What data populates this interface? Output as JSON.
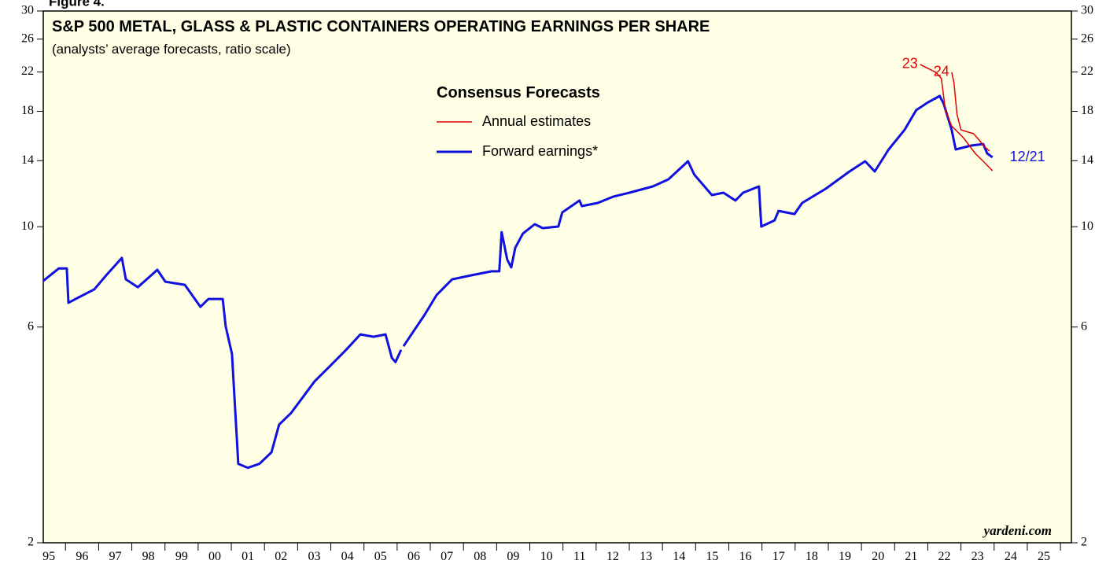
{
  "chart_data": {
    "type": "line",
    "figure_label": "Figure 4.",
    "title": "S&P 500 METAL, GLASS & PLASTIC CONTAINERS OPERATING EARNINGS PER SHARE",
    "subtitle": "(analysts’ average forecasts, ratio scale)",
    "watermark": "yardeni.com",
    "log_scale": true,
    "background": "#ffffe6",
    "ylim": [
      2,
      30
    ],
    "yticks": [
      2,
      6,
      10,
      14,
      18,
      22,
      26,
      30
    ],
    "xlim": [
      1995.33,
      2026.33
    ],
    "xticks": [
      {
        "value": 1995.5,
        "label": "95"
      },
      {
        "value": 1996.5,
        "label": "96"
      },
      {
        "value": 1997.5,
        "label": "97"
      },
      {
        "value": 1998.5,
        "label": "98"
      },
      {
        "value": 1999.5,
        "label": "99"
      },
      {
        "value": 2000.5,
        "label": "00"
      },
      {
        "value": 2001.5,
        "label": "01"
      },
      {
        "value": 2002.5,
        "label": "02"
      },
      {
        "value": 2003.5,
        "label": "03"
      },
      {
        "value": 2004.5,
        "label": "04"
      },
      {
        "value": 2005.5,
        "label": "05"
      },
      {
        "value": 2006.5,
        "label": "06"
      },
      {
        "value": 2007.5,
        "label": "07"
      },
      {
        "value": 2008.5,
        "label": "08"
      },
      {
        "value": 2009.5,
        "label": "09"
      },
      {
        "value": 2010.5,
        "label": "10"
      },
      {
        "value": 2011.5,
        "label": "11"
      },
      {
        "value": 2012.5,
        "label": "12"
      },
      {
        "value": 2013.5,
        "label": "13"
      },
      {
        "value": 2014.5,
        "label": "14"
      },
      {
        "value": 2015.5,
        "label": "15"
      },
      {
        "value": 2016.5,
        "label": "16"
      },
      {
        "value": 2017.5,
        "label": "17"
      },
      {
        "value": 2018.5,
        "label": "18"
      },
      {
        "value": 2019.5,
        "label": "19"
      },
      {
        "value": 2020.5,
        "label": "20"
      },
      {
        "value": 2021.5,
        "label": "21"
      },
      {
        "value": 2022.5,
        "label": "22"
      },
      {
        "value": 2023.5,
        "label": "23"
      },
      {
        "value": 2024.5,
        "label": "24"
      },
      {
        "value": 2025.5,
        "label": "25"
      }
    ],
    "legend": {
      "title": "Consensus Forecasts",
      "entries": [
        {
          "name": "Annual estimates",
          "color": "#e00000"
        },
        {
          "name": "Forward earnings*",
          "color": "#1010e0"
        }
      ]
    },
    "series": [
      {
        "color": "#1010e0",
        "end_label": "12/21",
        "x": [
          1995.33,
          1995.8,
          1996.04,
          1996.09,
          1996.4,
          1996.87,
          1997.23,
          1997.7,
          1997.82,
          1998.18,
          1998.77,
          1999.01,
          1999.6,
          2000.07,
          2000.31,
          2000.74,
          2000.83,
          2001.02,
          2001.21,
          2001.5,
          2001.85,
          2002.21,
          2002.44,
          2002.8,
          2003.16,
          2003.51,
          2003.99,
          2004.46,
          2004.89,
          2005.29,
          2005.65,
          2005.84,
          2005.95,
          2006.12,
          2006.15,
          2006.19,
          2006.83,
          2007.19,
          2007.66,
          2008.25,
          2008.85,
          2009.08,
          2009.15,
          2009.32,
          2009.44,
          2009.56,
          2009.79,
          2010.15,
          2010.39,
          2010.86,
          2010.98,
          2011.5,
          2011.57,
          2012.05,
          2012.52,
          2013.0,
          2013.71,
          2014.18,
          2014.77,
          2014.96,
          2015.49,
          2015.84,
          2016.2,
          2016.43,
          2016.91,
          2016.98,
          2017.38,
          2017.5,
          2017.98,
          2018.21,
          2018.92,
          2019.64,
          2020.11,
          2020.4,
          2020.82,
          2021.3,
          2021.65,
          2022.01,
          2022.36,
          2022.48,
          2022.72,
          2022.84,
          2023.31,
          2023.67,
          2023.79,
          2023.95
        ],
        "values": [
          7.59,
          8.09,
          8.09,
          6.79,
          6.98,
          7.27,
          7.81,
          8.53,
          7.65,
          7.35,
          8.03,
          7.56,
          7.44,
          6.65,
          6.92,
          6.92,
          6.02,
          5.23,
          2.99,
          2.93,
          2.99,
          3.17,
          3.65,
          3.87,
          4.2,
          4.55,
          4.93,
          5.34,
          5.78,
          5.71,
          5.78,
          5.13,
          5.02,
          5.34,
          null,
          5.44,
          6.39,
          7.06,
          7.65,
          7.81,
          7.97,
          7.97,
          9.73,
          8.46,
          8.13,
          8.98,
          9.66,
          10.13,
          9.93,
          10.01,
          10.76,
          11.43,
          11.11,
          11.29,
          11.66,
          11.89,
          12.28,
          12.73,
          13.96,
          13.04,
          11.75,
          11.89,
          11.43,
          11.89,
          12.28,
          10.01,
          10.33,
          10.84,
          10.67,
          11.29,
          12.13,
          13.25,
          13.96,
          13.25,
          14.82,
          16.38,
          18.11,
          18.85,
          19.46,
          18.7,
          16.38,
          14.82,
          15.12,
          15.24,
          14.53,
          14.24
        ]
      },
      {
        "color": "#e00000",
        "label": "23",
        "x": [
          2021.77,
          2022.24,
          2022.41,
          2022.53,
          2022.72,
          2023.07,
          2023.43,
          2023.67,
          2023.95
        ],
        "values": [
          22.86,
          21.96,
          21.27,
          18.11,
          16.71,
          15.74,
          14.53,
          13.96,
          13.3
        ]
      },
      {
        "color": "#e00000",
        "label": "24",
        "x": [
          2022.72,
          2022.79,
          2022.88,
          2023.0,
          2023.38,
          2023.55,
          2023.67,
          2023.86
        ],
        "values": [
          21.96,
          20.83,
          17.75,
          16.38,
          16.06,
          15.55,
          15.12,
          14.7
        ]
      }
    ]
  }
}
